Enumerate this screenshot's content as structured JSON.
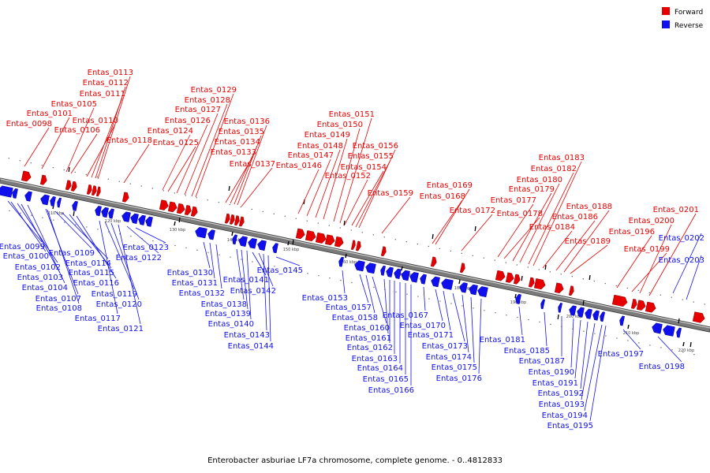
{
  "legend": {
    "forward": {
      "label": "Forward",
      "color": "#e60000"
    },
    "reverse": {
      "label": "Reverse",
      "color": "#1010ee"
    }
  },
  "caption": "Enterobacter asburiae LF7a chromosome, complete genome. - 0..4812833",
  "ticks": [
    "110 kbp",
    "120 kbp",
    "130 kbp",
    "140 kbp",
    "150 kbp",
    "160 kbp",
    "170 kbp",
    "180 kbp",
    "190 kbp",
    "200 kbp",
    "210 kbp",
    "220 kbp"
  ],
  "forward_genes": [
    "Entas_0098",
    "Entas_0101",
    "Entas_0105",
    "Entas_0106",
    "Entas_0110",
    "Entas_0111",
    "Entas_0112",
    "Entas_0113",
    "Entas_0118",
    "Entas_0124",
    "Entas_0125",
    "Entas_0126",
    "Entas_0127",
    "Entas_0128",
    "Entas_0129",
    "Entas_0133",
    "Entas_0134",
    "Entas_0135",
    "Entas_0136",
    "Entas_0137",
    "Entas_0146",
    "Entas_0147",
    "Entas_0148",
    "Entas_0149",
    "Entas_0150",
    "Entas_0151",
    "Entas_0152",
    "Entas_0154",
    "Entas_0155",
    "Entas_0156",
    "Entas_0159",
    "Entas_0168",
    "Entas_0169",
    "Entas_0172",
    "Entas_0177",
    "Entas_0178",
    "Entas_0179",
    "Entas_0180",
    "Entas_0182",
    "Entas_0183",
    "Entas_0184",
    "Entas_0186",
    "Entas_0188",
    "Entas_0189",
    "Entas_0196",
    "Entas_0199",
    "Entas_0200",
    "Entas_0201"
  ],
  "reverse_genes": [
    "Entas_0099",
    "Entas_0100",
    "Entas_0102",
    "Entas_0103",
    "Entas_0104",
    "Entas_0107",
    "Entas_0108",
    "Entas_0109",
    "Entas_0114",
    "Entas_0115",
    "Entas_0116",
    "Entas_0117",
    "Entas_0119",
    "Entas_0120",
    "Entas_0121",
    "Entas_0122",
    "Entas_0123",
    "Entas_0130",
    "Entas_0131",
    "Entas_0132",
    "Entas_0138",
    "Entas_0139",
    "Entas_0140",
    "Entas_0141",
    "Entas_0142",
    "Entas_0143",
    "Entas_0144",
    "Entas_0145",
    "Entas_0153",
    "Entas_0157",
    "Entas_0158",
    "Entas_0160",
    "Entas_0161",
    "Entas_0162",
    "Entas_0163",
    "Entas_0164",
    "Entas_0165",
    "Entas_0166",
    "Entas_0167",
    "Entas_0170",
    "Entas_0171",
    "Entas_0173",
    "Entas_0174",
    "Entas_0175",
    "Entas_0176",
    "Entas_0181",
    "Entas_0185",
    "Entas_0187",
    "Entas_0190",
    "Entas_0191",
    "Entas_0192",
    "Entas_0193",
    "Entas_0194",
    "Entas_0195",
    "Entas_0197",
    "Entas_0198",
    "Entas_0202",
    "Entas_0203"
  ]
}
